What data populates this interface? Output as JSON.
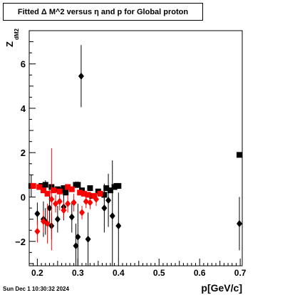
{
  "chart_data": {
    "type": "scatter",
    "title": "Fitted Δ M^2 versus η and p for Global proton",
    "xlabel": "p[GeV/c]",
    "ylabel": "Z",
    "ylabel_sub": "dM2",
    "timestamp": "Sun Dec  1 10:30:32 2024",
    "xlim": [
      0.18,
      0.705
    ],
    "ylim": [
      -3.1,
      7.5
    ],
    "x_ticks": [
      0.2,
      0.3,
      0.4,
      0.5,
      0.6,
      0.7
    ],
    "x_tick_labels": [
      "0.2",
      "0.3",
      "0.4",
      "0.5",
      "0.6",
      "0.7"
    ],
    "y_ticks": [
      -2,
      0,
      2,
      4,
      6
    ],
    "y_tick_labels": [
      "−2",
      "0",
      "2",
      "4",
      "6"
    ],
    "series": [
      {
        "color": "#000000",
        "marker": "square",
        "points": [
          {
            "x": 0.185,
            "y": 0.5,
            "err": 0.5
          },
          {
            "x": 0.21,
            "y": 0.5,
            "err": 0.1
          },
          {
            "x": 0.22,
            "y": 0.55,
            "err": 0.2
          },
          {
            "x": 0.235,
            "y": 0.45,
            "err": 0.1
          },
          {
            "x": 0.25,
            "y": 0.35,
            "err": 0.1
          },
          {
            "x": 0.26,
            "y": 0.3,
            "err": 0.1
          },
          {
            "x": 0.265,
            "y": 0.4,
            "err": 0.1
          },
          {
            "x": 0.27,
            "y": 0.2,
            "err": 0.1
          },
          {
            "x": 0.295,
            "y": 0.55,
            "err": 0.15
          },
          {
            "x": 0.3,
            "y": 0.55,
            "err": 0.15
          },
          {
            "x": 0.31,
            "y": 0.3,
            "err": 0.1
          },
          {
            "x": 0.33,
            "y": 0.4,
            "err": 0.1
          },
          {
            "x": 0.335,
            "y": 0.05,
            "err": 0.1
          },
          {
            "x": 0.35,
            "y": 0.25,
            "err": 0.1
          },
          {
            "x": 0.365,
            "y": 0.1,
            "err": 0.3
          },
          {
            "x": 0.37,
            "y": 0.4,
            "err": 0.1
          },
          {
            "x": 0.38,
            "y": 0.3,
            "err": 0.1
          },
          {
            "x": 0.39,
            "y": 0.45,
            "err": 0.1
          },
          {
            "x": 0.395,
            "y": 0.5,
            "err": 0.1
          },
          {
            "x": 0.4,
            "y": 0.5,
            "err": 0.1
          },
          {
            "x": 0.698,
            "y": 1.9,
            "err": 0.1
          }
        ]
      },
      {
        "color": "#000000",
        "marker": "diamond",
        "points": [
          {
            "x": 0.2,
            "y": -0.75,
            "err": 0.5
          },
          {
            "x": 0.215,
            "y": -1.0,
            "err": 0.8
          },
          {
            "x": 0.22,
            "y": -1.1,
            "err": 0.6
          },
          {
            "x": 0.23,
            "y": -0.5,
            "err": 0.8
          },
          {
            "x": 0.235,
            "y": -1.3,
            "err": 0.6
          },
          {
            "x": 0.25,
            "y": -1.0,
            "err": 0.6
          },
          {
            "x": 0.265,
            "y": -0.45,
            "err": 0.6
          },
          {
            "x": 0.285,
            "y": -0.9,
            "err": 0.7
          },
          {
            "x": 0.295,
            "y": -2.2,
            "err": 1.0
          },
          {
            "x": 0.3,
            "y": -1.8,
            "err": 1.5
          },
          {
            "x": 0.308,
            "y": 5.45,
            "err": 1.4
          },
          {
            "x": 0.325,
            "y": -1.9,
            "err": 1.2
          },
          {
            "x": 0.365,
            "y": -0.5,
            "err": 1.1
          },
          {
            "x": 0.375,
            "y": -0.15,
            "err": 1.2
          },
          {
            "x": 0.385,
            "y": -0.85,
            "err": 2.5
          },
          {
            "x": 0.4,
            "y": -1.3,
            "err": 1.5
          },
          {
            "x": 0.698,
            "y": -1.2,
            "err": 1.2
          }
        ]
      },
      {
        "color": "#ff0000",
        "marker": "square",
        "points": [
          {
            "x": 0.19,
            "y": 0.5,
            "err": 0.1
          },
          {
            "x": 0.205,
            "y": 0.45,
            "err": 0.1
          },
          {
            "x": 0.215,
            "y": 0.3,
            "err": 0.1
          },
          {
            "x": 0.225,
            "y": 0.15,
            "err": 0.1
          },
          {
            "x": 0.24,
            "y": 0.3,
            "err": 0.1
          },
          {
            "x": 0.255,
            "y": 0.25,
            "err": 0.1
          },
          {
            "x": 0.275,
            "y": 0.45,
            "err": 0.1
          },
          {
            "x": 0.285,
            "y": 0.35,
            "err": 0.1
          },
          {
            "x": 0.305,
            "y": 0.2,
            "err": 0.1
          },
          {
            "x": 0.315,
            "y": 0.15,
            "err": 0.1
          },
          {
            "x": 0.325,
            "y": 0.1,
            "err": 0.1
          },
          {
            "x": 0.34,
            "y": 0.05,
            "err": 0.1
          },
          {
            "x": 0.355,
            "y": 0.15,
            "err": 0.1
          }
        ]
      },
      {
        "color": "#ff0000",
        "marker": "diamond",
        "points": [
          {
            "x": 0.2,
            "y": -1.55,
            "err": 0.5
          },
          {
            "x": 0.215,
            "y": -1.1,
            "err": 0.5
          },
          {
            "x": 0.225,
            "y": -1.2,
            "err": 0.9
          },
          {
            "x": 0.235,
            "y": -0.1,
            "err": 2.3
          },
          {
            "x": 0.245,
            "y": -0.3,
            "err": 0.4
          },
          {
            "x": 0.255,
            "y": -0.2,
            "err": 0.4
          },
          {
            "x": 0.265,
            "y": -0.6,
            "err": 0.4
          },
          {
            "x": 0.275,
            "y": -0.3,
            "err": 0.4
          },
          {
            "x": 0.29,
            "y": -0.25,
            "err": 0.4
          },
          {
            "x": 0.31,
            "y": -0.7,
            "err": 0.3
          },
          {
            "x": 0.32,
            "y": -0.2,
            "err": 0.3
          },
          {
            "x": 0.33,
            "y": -0.25,
            "err": 0.3
          },
          {
            "x": 0.345,
            "y": -0.1,
            "err": 0.3
          }
        ]
      }
    ]
  }
}
